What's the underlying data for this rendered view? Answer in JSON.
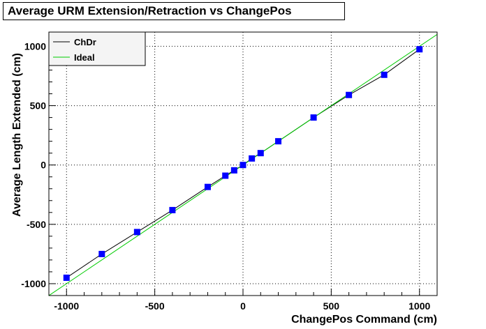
{
  "chart_data": {
    "type": "line",
    "title": "Average URM Extension/Retraction vs ChangePos",
    "xlabel": "ChangePos Command (cm)",
    "ylabel": "Average Length Extended (cm)",
    "xlim": [
      -1100,
      1100
    ],
    "ylim": [
      -1100,
      1120
    ],
    "xticks": [
      -1000,
      -500,
      0,
      500,
      1000
    ],
    "yticks": [
      -1000,
      -500,
      0,
      500,
      1000
    ],
    "xtick_labels": [
      "-1000",
      "-500",
      "0",
      "500",
      "1000"
    ],
    "ytick_labels": [
      "-1000",
      "-500",
      "0",
      "500",
      "1000"
    ],
    "grid": true,
    "legend_position": "top-left",
    "series": [
      {
        "name": "ChDr",
        "color": "#000000",
        "marker": "square",
        "marker_color": "#0000ff",
        "x": [
          -1000,
          -800,
          -600,
          -400,
          -200,
          -100,
          -50,
          0,
          50,
          100,
          200,
          400,
          600,
          800,
          1000
        ],
        "y": [
          -950,
          -750,
          -565,
          -380,
          -185,
          -90,
          -45,
          0,
          55,
          100,
          200,
          400,
          590,
          760,
          975
        ]
      },
      {
        "name": "Ideal",
        "color": "#00cc00",
        "x": [
          -1100,
          1100
        ],
        "y": [
          -1100,
          1100
        ]
      }
    ]
  }
}
